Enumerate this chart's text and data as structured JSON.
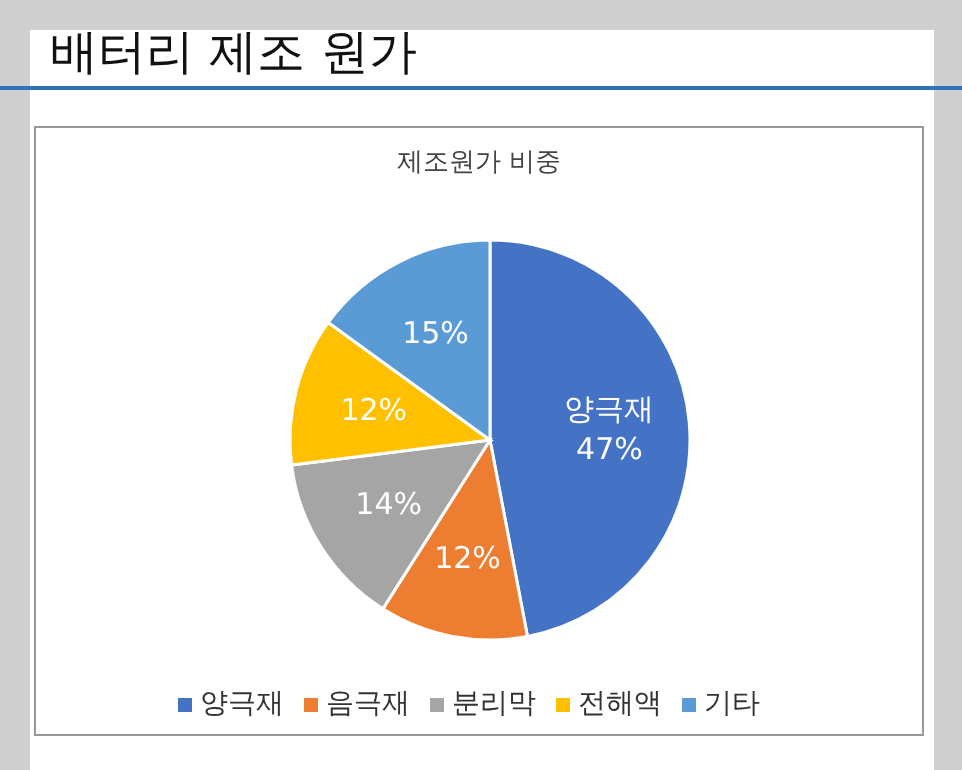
{
  "chart_data": {
    "type": "pie",
    "title": "배터리 제조 원가",
    "subtitle": "제조원가 비중",
    "categories": [
      "양극재",
      "음극재",
      "분리막",
      "전해액",
      "기타"
    ],
    "values": [
      47,
      12,
      14,
      12,
      15
    ],
    "colors": [
      "#4472c4",
      "#ed7d31",
      "#a5a5a5",
      "#ffc000",
      "#5b9bd5"
    ],
    "value_labels": [
      "양극재\n47%",
      "12%",
      "14%",
      "12%",
      "15%"
    ],
    "legend": "bottom"
  }
}
